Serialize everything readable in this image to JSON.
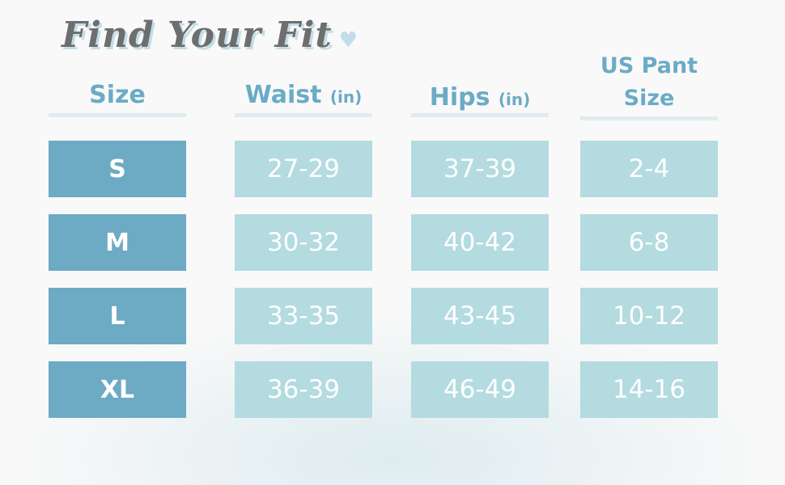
{
  "title": "Find Your Fit",
  "icons": {
    "heart": "heart-icon"
  },
  "colors": {
    "size_cell": "#6daac4",
    "value_cell": "#b3dbe0",
    "header": "#6aabc6",
    "title": "#6e6e6e"
  },
  "headers": [
    {
      "label": "Size",
      "unit": ""
    },
    {
      "label": "Waist",
      "unit": "(in)"
    },
    {
      "label": "Hips",
      "unit": "(in)"
    },
    {
      "label": "US Pant Size",
      "unit": ""
    }
  ],
  "rows": [
    {
      "size": "S",
      "waist": "27-29",
      "hips": "37-39",
      "us_pant": "2-4"
    },
    {
      "size": "M",
      "waist": "30-32",
      "hips": "40-42",
      "us_pant": "6-8"
    },
    {
      "size": "L",
      "waist": "33-35",
      "hips": "43-45",
      "us_pant": "10-12"
    },
    {
      "size": "XL",
      "waist": "36-39",
      "hips": "46-49",
      "us_pant": "14-16"
    }
  ]
}
